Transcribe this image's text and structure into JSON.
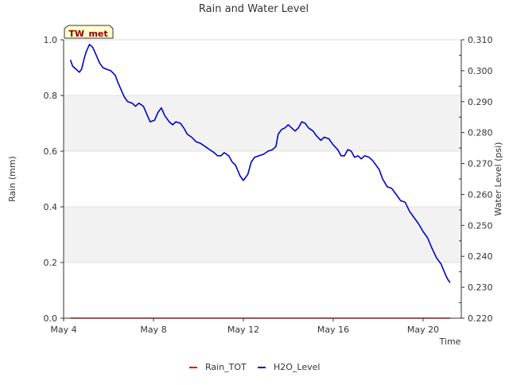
{
  "chart_data": {
    "type": "line",
    "title": "Rain and Water Level",
    "station_label": "TW_met",
    "xlabel": "Time",
    "ylabel_left": "Rain (mm)",
    "ylabel_right": "Water Level (psi)",
    "x_ticks": [
      {
        "day": 4,
        "label": "May 4"
      },
      {
        "day": 8,
        "label": "May 8"
      },
      {
        "day": 12,
        "label": "May 12"
      },
      {
        "day": 16,
        "label": "May 16"
      },
      {
        "day": 20,
        "label": "May 20"
      }
    ],
    "xlim": [
      4.0,
      21.7
    ],
    "ylim_left": [
      0.0,
      1.0
    ],
    "yticks_left": [
      {
        "value": 0.0,
        "label": "0.0"
      },
      {
        "value": 0.2,
        "label": "0.2"
      },
      {
        "value": 0.4,
        "label": "0.4"
      },
      {
        "value": 0.6,
        "label": "0.6"
      },
      {
        "value": 0.8,
        "label": "0.8"
      },
      {
        "value": 1.0,
        "label": "1.0"
      }
    ],
    "ylim_right": [
      0.22,
      0.31
    ],
    "yticks_right": [
      {
        "value": 0.22,
        "label": "0.220"
      },
      {
        "value": 0.23,
        "label": "0.230"
      },
      {
        "value": 0.24,
        "label": "0.240"
      },
      {
        "value": 0.25,
        "label": "0.250"
      },
      {
        "value": 0.26,
        "label": "0.260"
      },
      {
        "value": 0.27,
        "label": "0.270"
      },
      {
        "value": 0.28,
        "label": "0.280"
      },
      {
        "value": 0.29,
        "label": "0.290"
      },
      {
        "value": 0.3,
        "label": "0.300"
      },
      {
        "value": 0.31,
        "label": "0.310"
      }
    ],
    "series": [
      {
        "name": "Rain_TOT",
        "axis": "left",
        "color": "#dd0000",
        "x": [
          4.3,
          21.2
        ],
        "y": [
          0.0,
          0.0
        ]
      },
      {
        "name": "H2O_Level",
        "axis": "right",
        "color": "#0000cc",
        "x": [
          4.3,
          4.4,
          4.55,
          4.7,
          4.8,
          4.9,
          5.0,
          5.15,
          5.3,
          5.45,
          5.6,
          5.75,
          5.9,
          6.1,
          6.3,
          6.4,
          6.55,
          6.7,
          6.85,
          7.05,
          7.2,
          7.35,
          7.55,
          7.7,
          7.85,
          8.05,
          8.2,
          8.35,
          8.5,
          8.7,
          8.85,
          9.0,
          9.2,
          9.35,
          9.5,
          9.7,
          9.9,
          10.1,
          10.3,
          10.5,
          10.7,
          10.85,
          11.0,
          11.15,
          11.35,
          11.5,
          11.65,
          11.85,
          12.0,
          12.2,
          12.35,
          12.5,
          12.7,
          12.9,
          13.1,
          13.3,
          13.45,
          13.55,
          13.7,
          13.85,
          14.0,
          14.15,
          14.3,
          14.45,
          14.6,
          14.75,
          14.9,
          15.1,
          15.25,
          15.45,
          15.6,
          15.8,
          16.0,
          16.2,
          16.35,
          16.5,
          16.65,
          16.8,
          16.95,
          17.1,
          17.25,
          17.4,
          17.6,
          17.75,
          17.9,
          18.05,
          18.2,
          18.4,
          18.6,
          18.8,
          19.0,
          19.2,
          19.4,
          19.6,
          19.8,
          20.0,
          20.2,
          20.4,
          20.6,
          20.8,
          21.0,
          21.1,
          21.2
        ],
        "y": [
          0.3035,
          0.3015,
          0.3005,
          0.2995,
          0.3005,
          0.3035,
          0.306,
          0.3085,
          0.3075,
          0.305,
          0.3025,
          0.301,
          0.3005,
          0.3,
          0.2985,
          0.2965,
          0.294,
          0.2915,
          0.29,
          0.2895,
          0.2885,
          0.2895,
          0.2885,
          0.286,
          0.2835,
          0.284,
          0.2865,
          0.288,
          0.2855,
          0.2835,
          0.2825,
          0.2835,
          0.283,
          0.2815,
          0.2795,
          0.2785,
          0.277,
          0.2765,
          0.2755,
          0.2745,
          0.2735,
          0.2725,
          0.2725,
          0.2735,
          0.2725,
          0.2705,
          0.2695,
          0.266,
          0.2645,
          0.2665,
          0.2705,
          0.272,
          0.2725,
          0.273,
          0.274,
          0.2745,
          0.2755,
          0.2795,
          0.281,
          0.2815,
          0.2825,
          0.2815,
          0.2805,
          0.2815,
          0.2835,
          0.283,
          0.2815,
          0.2805,
          0.279,
          0.2775,
          0.2785,
          0.278,
          0.276,
          0.2745,
          0.2725,
          0.2725,
          0.2745,
          0.274,
          0.272,
          0.2725,
          0.2715,
          0.2725,
          0.272,
          0.271,
          0.2695,
          0.268,
          0.265,
          0.2625,
          0.262,
          0.26,
          0.258,
          0.2575,
          0.2545,
          0.2525,
          0.2505,
          0.248,
          0.246,
          0.2425,
          0.2395,
          0.2375,
          0.234,
          0.2325,
          0.2315
        ]
      }
    ],
    "legend_position": "bottom-center",
    "background_bands_left": [
      [
        0.2,
        0.4
      ],
      [
        0.6,
        0.8
      ]
    ],
    "grid": true
  }
}
